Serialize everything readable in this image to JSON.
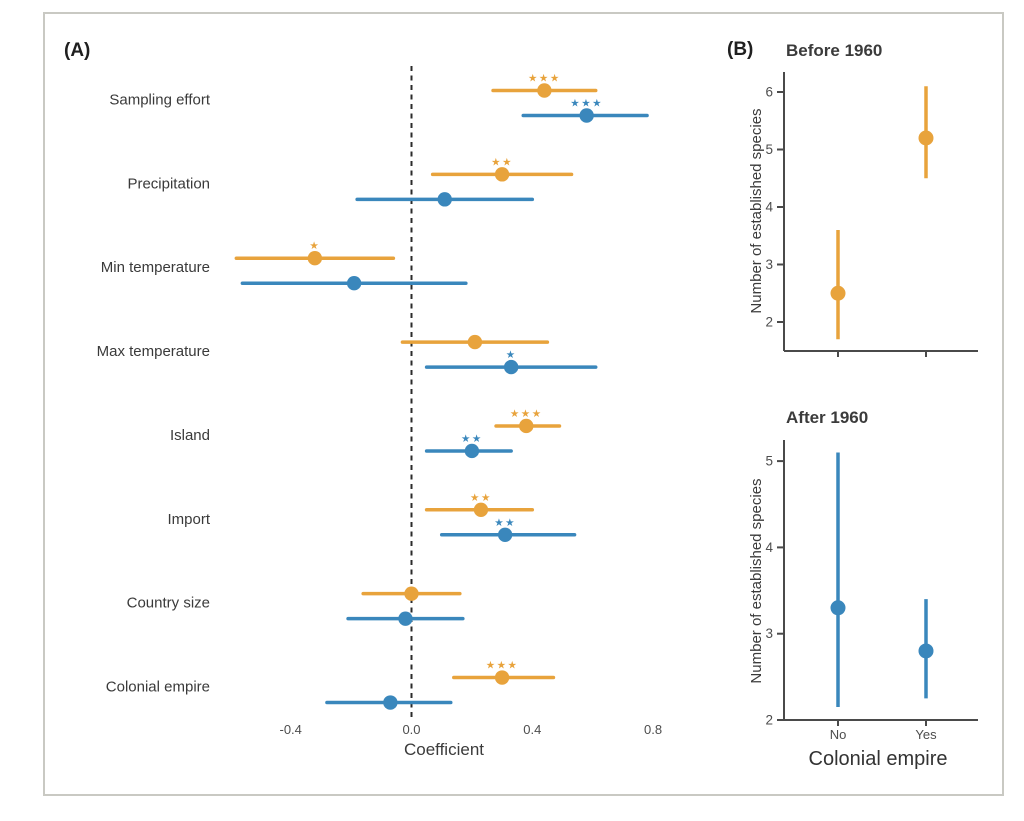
{
  "colors": {
    "orange": "#E8A33C",
    "blue": "#3A87BC",
    "axis": "#4a4a4a",
    "tick_text": "#4d4d4d",
    "label_text": "#3a3a3a",
    "zero_line": "#2b2b2b",
    "border": "#c9c9c3"
  },
  "chart_data": [
    {
      "id": "panel_a_coefficients",
      "type": "scatter",
      "subtype": "dot-and-whisker",
      "panel_letter": "(A)",
      "xlabel": "Coefficient",
      "x_ticks": [
        "-0.4",
        "0.0",
        "0.4",
        "0.8"
      ],
      "x_tick_values": [
        -0.4,
        0.0,
        0.4,
        0.8
      ],
      "xlim": [
        -0.65,
        0.88
      ],
      "zero_reference_line": 0.0,
      "legend": "none",
      "series_names": [
        "orange",
        "blue"
      ],
      "rows": [
        {
          "label": "Sampling effort",
          "orange": {
            "est": 0.44,
            "lo": 0.27,
            "hi": 0.61,
            "sig": "***"
          },
          "blue": {
            "est": 0.58,
            "lo": 0.37,
            "hi": 0.78,
            "sig": "***"
          }
        },
        {
          "label": "Precipitation",
          "orange": {
            "est": 0.3,
            "lo": 0.07,
            "hi": 0.53,
            "sig": "**"
          },
          "blue": {
            "est": 0.11,
            "lo": -0.18,
            "hi": 0.4,
            "sig": ""
          }
        },
        {
          "label": "Min temperature",
          "orange": {
            "est": -0.32,
            "lo": -0.58,
            "hi": -0.06,
            "sig": "*"
          },
          "blue": {
            "est": -0.19,
            "lo": -0.56,
            "hi": 0.18,
            "sig": ""
          }
        },
        {
          "label": "Max temperature",
          "orange": {
            "est": 0.21,
            "lo": -0.03,
            "hi": 0.45,
            "sig": ""
          },
          "blue": {
            "est": 0.33,
            "lo": 0.05,
            "hi": 0.61,
            "sig": "*"
          }
        },
        {
          "label": "Island",
          "orange": {
            "est": 0.38,
            "lo": 0.28,
            "hi": 0.49,
            "sig": "***"
          },
          "blue": {
            "est": 0.2,
            "lo": 0.05,
            "hi": 0.33,
            "sig": "**"
          }
        },
        {
          "label": "Import",
          "orange": {
            "est": 0.23,
            "lo": 0.05,
            "hi": 0.4,
            "sig": "**"
          },
          "blue": {
            "est": 0.31,
            "lo": 0.1,
            "hi": 0.54,
            "sig": "**"
          }
        },
        {
          "label": "Country size",
          "orange": {
            "est": 0.0,
            "lo": -0.16,
            "hi": 0.16,
            "sig": ""
          },
          "blue": {
            "est": -0.02,
            "lo": -0.21,
            "hi": 0.17,
            "sig": ""
          }
        },
        {
          "label": "Colonial empire",
          "orange": {
            "est": 0.3,
            "lo": 0.14,
            "hi": 0.47,
            "sig": "***"
          },
          "blue": {
            "est": -0.07,
            "lo": -0.28,
            "hi": 0.13,
            "sig": ""
          }
        }
      ]
    },
    {
      "id": "panel_b_before_1960",
      "type": "scatter",
      "subtype": "point-range",
      "panel_letter": "(B)",
      "title": "Before 1960",
      "ylabel": "Number of established species",
      "xlabel": "",
      "y_ticks": [
        2,
        3,
        4,
        5,
        6
      ],
      "ylim": [
        1.55,
        6.35
      ],
      "categories": [
        "No",
        "Yes"
      ],
      "show_category_labels": false,
      "series_color": "orange",
      "points": [
        {
          "category": "No",
          "est": 2.5,
          "lo": 1.7,
          "hi": 3.6
        },
        {
          "category": "Yes",
          "est": 5.2,
          "lo": 4.5,
          "hi": 6.1
        }
      ]
    },
    {
      "id": "panel_b_after_1960",
      "type": "scatter",
      "subtype": "point-range",
      "title": "After 1960",
      "ylabel": "Number of established species",
      "xlabel": "Colonial empire",
      "y_ticks": [
        2,
        3,
        4,
        5
      ],
      "ylim": [
        1.95,
        5.25
      ],
      "categories": [
        "No",
        "Yes"
      ],
      "show_category_labels": true,
      "series_color": "blue",
      "points": [
        {
          "category": "No",
          "est": 3.3,
          "lo": 2.15,
          "hi": 5.1
        },
        {
          "category": "Yes",
          "est": 2.8,
          "lo": 2.25,
          "hi": 3.4
        }
      ]
    }
  ]
}
